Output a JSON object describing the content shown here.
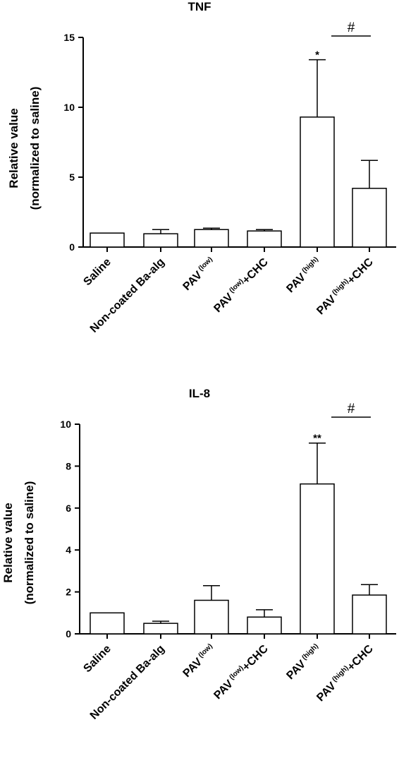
{
  "chart_data": [
    {
      "type": "bar",
      "title": "TNF",
      "ylabel_line1": "Relative value",
      "ylabel_line2": "(normalized to saline)",
      "ylim": [
        0,
        15
      ],
      "yticks": [
        0,
        5,
        10,
        15
      ],
      "categories": [
        {
          "main": "Saline",
          "sub": "",
          "suffix": ""
        },
        {
          "main": "Non-coated Ba-alg",
          "sub": "",
          "suffix": ""
        },
        {
          "main": "PAV",
          "sub": "(low)",
          "suffix": ""
        },
        {
          "main": "PAV",
          "sub": "(low)",
          "suffix": "+CHC"
        },
        {
          "main": "PAV",
          "sub": "(high)",
          "suffix": ""
        },
        {
          "main": "PAV",
          "sub": "(high)",
          "suffix": "+CHC"
        }
      ],
      "values": [
        1.0,
        0.95,
        1.25,
        1.15,
        9.3,
        4.2
      ],
      "errors": [
        0,
        0.3,
        0.1,
        0.1,
        4.1,
        2.0
      ],
      "significance": [
        {
          "index": 4,
          "label": "*"
        },
        {
          "from": 4,
          "to": 5,
          "label": "#"
        }
      ]
    },
    {
      "type": "bar",
      "title": "IL-8",
      "ylabel_line1": "Relative value",
      "ylabel_line2": "(normalized to saline)",
      "ylim": [
        0,
        10
      ],
      "yticks": [
        0,
        2,
        4,
        6,
        8,
        10
      ],
      "categories": [
        {
          "main": "Saline",
          "sub": "",
          "suffix": ""
        },
        {
          "main": "Non-coated Ba-alg",
          "sub": "",
          "suffix": ""
        },
        {
          "main": "PAV",
          "sub": "(low)",
          "suffix": ""
        },
        {
          "main": "PAV",
          "sub": "(low)",
          "suffix": "+CHC"
        },
        {
          "main": "PAV",
          "sub": "(high)",
          "suffix": ""
        },
        {
          "main": "PAV",
          "sub": "(high)",
          "suffix": "+CHC"
        }
      ],
      "values": [
        1.0,
        0.5,
        1.6,
        0.8,
        7.15,
        1.85
      ],
      "errors": [
        0,
        0.1,
        0.7,
        0.35,
        1.95,
        0.5
      ],
      "significance": [
        {
          "index": 4,
          "label": "**"
        },
        {
          "from": 4,
          "to": 5,
          "label": "#"
        }
      ]
    }
  ]
}
